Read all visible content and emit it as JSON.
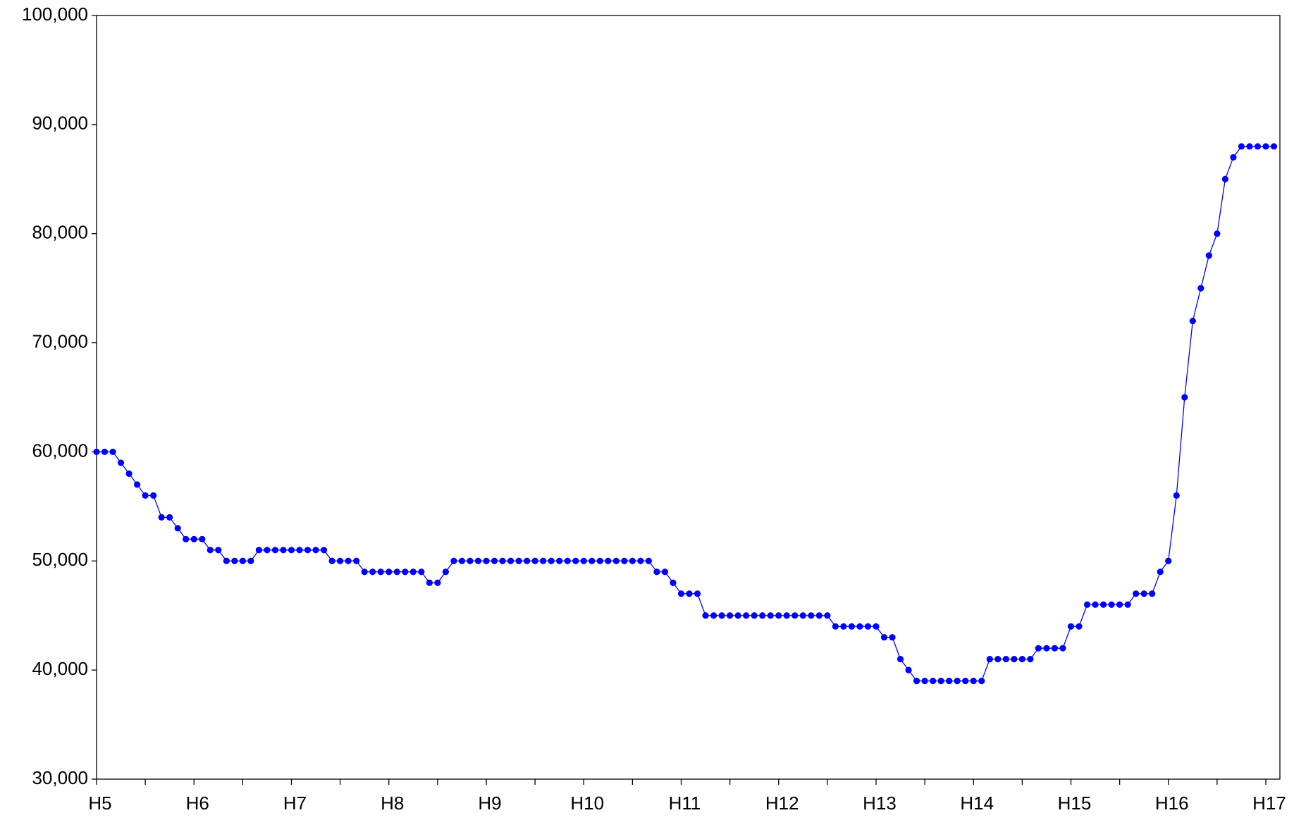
{
  "chart_data": {
    "type": "line",
    "categories": [
      "H5",
      null,
      null,
      null,
      null,
      null,
      null,
      null,
      null,
      null,
      null,
      null,
      "H6",
      null,
      null,
      null,
      null,
      null,
      null,
      null,
      null,
      null,
      null,
      null,
      "H7",
      null,
      null,
      null,
      null,
      null,
      null,
      null,
      null,
      null,
      null,
      null,
      "H8",
      null,
      null,
      null,
      null,
      null,
      null,
      null,
      null,
      null,
      null,
      null,
      "H9",
      null,
      null,
      null,
      null,
      null,
      null,
      null,
      null,
      null,
      null,
      null,
      "H10",
      null,
      null,
      null,
      null,
      null,
      null,
      null,
      null,
      null,
      null,
      null,
      "H11",
      null,
      null,
      null,
      null,
      null,
      null,
      null,
      null,
      null,
      null,
      null,
      "H12",
      null,
      null,
      null,
      null,
      null,
      null,
      null,
      null,
      null,
      null,
      null,
      "H13",
      null,
      null,
      null,
      null,
      null,
      null,
      null,
      null,
      null,
      null,
      null,
      "H14",
      null,
      null,
      null,
      null,
      null,
      null,
      null,
      null,
      null,
      null,
      null,
      "H15",
      null,
      null,
      null,
      null,
      null,
      null,
      null,
      null,
      null,
      null,
      null,
      "H16",
      null,
      null,
      null,
      null,
      null,
      null,
      null,
      null,
      null,
      null,
      null,
      "H17",
      null
    ],
    "series": [
      {
        "color": "#0000ff",
        "values": [
          60000,
          60000,
          60000,
          59000,
          58000,
          57000,
          56000,
          56000,
          54000,
          54000,
          53000,
          52000,
          52000,
          52000,
          51000,
          51000,
          50000,
          50000,
          50000,
          50000,
          51000,
          51000,
          51000,
          51000,
          51000,
          51000,
          51000,
          51000,
          51000,
          50000,
          50000,
          50000,
          50000,
          49000,
          49000,
          49000,
          49000,
          49000,
          49000,
          49000,
          49000,
          48000,
          48000,
          49000,
          50000,
          50000,
          50000,
          50000,
          50000,
          50000,
          50000,
          50000,
          50000,
          50000,
          50000,
          50000,
          50000,
          50000,
          50000,
          50000,
          50000,
          50000,
          50000,
          50000,
          50000,
          50000,
          50000,
          50000,
          50000,
          49000,
          49000,
          48000,
          47000,
          47000,
          47000,
          45000,
          45000,
          45000,
          45000,
          45000,
          45000,
          45000,
          45000,
          45000,
          45000,
          45000,
          45000,
          45000,
          45000,
          45000,
          45000,
          44000,
          44000,
          44000,
          44000,
          44000,
          44000,
          43000,
          43000,
          41000,
          40000,
          39000,
          39000,
          39000,
          39000,
          39000,
          39000,
          39000,
          39000,
          39000,
          41000,
          41000,
          41000,
          41000,
          41000,
          41000,
          42000,
          42000,
          42000,
          42000,
          44000,
          44000,
          46000,
          46000,
          46000,
          46000,
          46000,
          46000,
          47000,
          47000,
          47000,
          49000,
          50000,
          56000,
          65000,
          72000,
          75000,
          78000,
          80000,
          85000,
          87000,
          88000,
          88000,
          88000,
          88000,
          88000
        ]
      }
    ],
    "ylim": [
      30000,
      100000
    ],
    "yticks": [
      {
        "value": 30000,
        "label": "30,000"
      },
      {
        "value": 40000,
        "label": "40,000"
      },
      {
        "value": 50000,
        "label": "50,000"
      },
      {
        "value": 60000,
        "label": "60,000"
      },
      {
        "value": 70000,
        "label": "70,000"
      },
      {
        "value": 80000,
        "label": "80,000"
      },
      {
        "value": 90000,
        "label": "90,000"
      },
      {
        "value": 100000,
        "label": "100,000"
      }
    ]
  }
}
